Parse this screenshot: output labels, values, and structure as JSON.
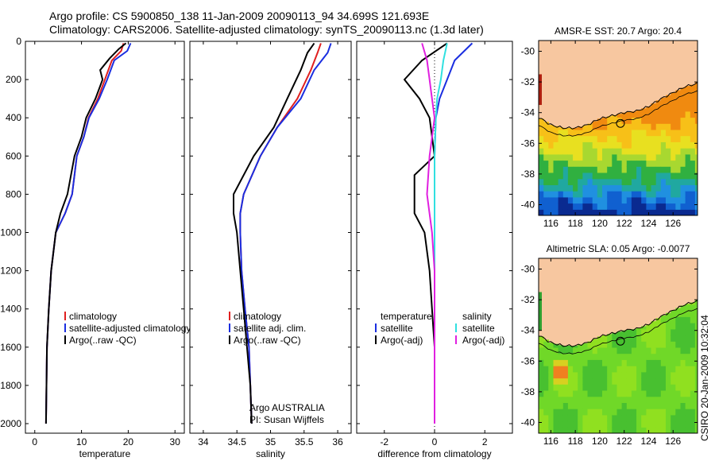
{
  "header": {
    "line1": "Argo profile: CS 5900850_138 11-Jan-2009 20090113_94 34.699S 121.693E",
    "line2": "Climatology: CARS2006. Satellite-adjusted climatology: synTS_20090113.nc (1.3d later)"
  },
  "side_label": "CSIRO 20-Jan-2009 10:32:04",
  "colors": {
    "climatology": "#e02020",
    "satellite": "#1a2ee0",
    "argo": "#000000",
    "argo_salinity_diff": "#e020e0",
    "satellite_salinity_diff": "#30e0e0",
    "land": "#f7c7a0"
  },
  "chart_data": [
    {
      "type": "line",
      "name": "temperature-profile",
      "xlabel": "temperature",
      "ylabel": "",
      "xlim": [
        -2,
        32
      ],
      "ylim": [
        2050,
        0
      ],
      "xticks": [
        0,
        10,
        20,
        30
      ],
      "yticks": [
        0,
        200,
        400,
        600,
        800,
        1000,
        1200,
        1400,
        1600,
        1800,
        2000
      ],
      "legend": [
        "climatology",
        "satellite-adjusted climatology",
        "Argo(..raw -QC)"
      ],
      "series": [
        {
          "name": "climatology",
          "color": "#e02020",
          "points": [
            [
              19.0,
              10
            ],
            [
              18.5,
              50
            ],
            [
              16.5,
              100
            ],
            [
              15.0,
              200
            ],
            [
              13.5,
              300
            ],
            [
              11.5,
              400
            ],
            [
              10.5,
              500
            ],
            [
              9.0,
              600
            ],
            [
              8.0,
              800
            ],
            [
              6.5,
              900
            ],
            [
              4.5,
              1000
            ],
            [
              3.5,
              1200
            ],
            [
              3.0,
              1400
            ],
            [
              2.6,
              1600
            ],
            [
              2.5,
              1800
            ],
            [
              2.4,
              2000
            ]
          ]
        },
        {
          "name": "satellite-adjusted climatology",
          "color": "#1a2ee0",
          "points": [
            [
              20.5,
              10
            ],
            [
              19.8,
              50
            ],
            [
              17.0,
              100
            ],
            [
              15.5,
              200
            ],
            [
              13.8,
              300
            ],
            [
              11.6,
              400
            ],
            [
              10.5,
              500
            ],
            [
              9.0,
              600
            ],
            [
              8.0,
              800
            ],
            [
              6.5,
              900
            ],
            [
              4.5,
              1000
            ],
            [
              3.5,
              1200
            ],
            [
              3.0,
              1400
            ],
            [
              2.6,
              1600
            ],
            [
              2.5,
              1800
            ],
            [
              2.4,
              2000
            ]
          ]
        },
        {
          "name": "Argo(..raw -QC)",
          "color": "#000000",
          "points": [
            [
              19.5,
              10
            ],
            [
              18.0,
              40
            ],
            [
              16.0,
              90
            ],
            [
              14.0,
              150
            ],
            [
              14.5,
              200
            ],
            [
              13.0,
              300
            ],
            [
              11.0,
              400
            ],
            [
              10.0,
              500
            ],
            [
              8.5,
              600
            ],
            [
              7.0,
              800
            ],
            [
              5.5,
              900
            ],
            [
              4.5,
              1000
            ],
            [
              3.5,
              1200
            ],
            [
              3.0,
              1400
            ],
            [
              2.6,
              1600
            ],
            [
              2.5,
              1800
            ],
            [
              2.4,
              2000
            ]
          ]
        }
      ]
    },
    {
      "type": "line",
      "name": "salinity-profile",
      "xlabel": "salinity",
      "ylabel": "",
      "xlim": [
        33.8,
        36.2
      ],
      "ylim": [
        2050,
        0
      ],
      "xticks": [
        34,
        34.5,
        35,
        35.5,
        36
      ],
      "legend": [
        "climatology",
        "satellite adj. clim.",
        "Argo(..raw -QC)"
      ],
      "note1": "Argo AUSTRALIA",
      "note2": "PI: Susan Wijffels",
      "series": [
        {
          "name": "climatology",
          "color": "#e02020",
          "points": [
            [
              35.75,
              10
            ],
            [
              35.7,
              60
            ],
            [
              35.6,
              150
            ],
            [
              35.4,
              300
            ],
            [
              35.1,
              450
            ],
            [
              34.85,
              600
            ],
            [
              34.6,
              800
            ],
            [
              34.55,
              900
            ],
            [
              34.55,
              1000
            ],
            [
              34.57,
              1200
            ],
            [
              34.62,
              1400
            ],
            [
              34.68,
              1600
            ],
            [
              34.7,
              1800
            ],
            [
              34.72,
              2000
            ]
          ]
        },
        {
          "name": "satellite adj. clim.",
          "color": "#1a2ee0",
          "points": [
            [
              35.9,
              10
            ],
            [
              35.85,
              60
            ],
            [
              35.65,
              150
            ],
            [
              35.45,
              300
            ],
            [
              35.1,
              450
            ],
            [
              34.85,
              600
            ],
            [
              34.6,
              800
            ],
            [
              34.55,
              900
            ],
            [
              34.55,
              1000
            ],
            [
              34.57,
              1200
            ],
            [
              34.62,
              1400
            ],
            [
              34.68,
              1600
            ],
            [
              34.7,
              1800
            ],
            [
              34.72,
              2000
            ]
          ]
        },
        {
          "name": "Argo(..raw -QC)",
          "color": "#000000",
          "points": [
            [
              35.65,
              10
            ],
            [
              35.55,
              60
            ],
            [
              35.45,
              150
            ],
            [
              35.25,
              300
            ],
            [
              35.05,
              450
            ],
            [
              34.75,
              600
            ],
            [
              34.45,
              800
            ],
            [
              34.45,
              900
            ],
            [
              34.5,
              1000
            ],
            [
              34.55,
              1200
            ],
            [
              34.6,
              1400
            ],
            [
              34.65,
              1600
            ],
            [
              34.7,
              1800
            ],
            [
              34.72,
              2000
            ]
          ]
        }
      ]
    },
    {
      "type": "line",
      "name": "difference-from-climatology",
      "xlabel": "difference from climatology",
      "ylabel": "",
      "xlim": [
        -3.1,
        3.1
      ],
      "ylim": [
        2050,
        0
      ],
      "xticks": [
        -2,
        0,
        2
      ],
      "legend_temperature": [
        "temperature",
        "satellite",
        "Argo(-adj)"
      ],
      "legend_salinity": [
        "salinity",
        "satellite",
        "Argo(-adj)"
      ],
      "series": [
        {
          "name": "temperature satellite",
          "color": "#1a2ee0",
          "points": [
            [
              1.5,
              10
            ],
            [
              0.8,
              100
            ],
            [
              0.5,
              200
            ],
            [
              0.2,
              300
            ],
            [
              0.05,
              400
            ],
            [
              0,
              600
            ],
            [
              0,
              2000
            ]
          ]
        },
        {
          "name": "temperature Argo(-adj)",
          "color": "#000000",
          "points": [
            [
              0.5,
              10
            ],
            [
              -0.5,
              100
            ],
            [
              -1.2,
              200
            ],
            [
              -0.6,
              300
            ],
            [
              -0.2,
              400
            ],
            [
              0,
              600
            ],
            [
              -0.8,
              700
            ],
            [
              -0.8,
              900
            ],
            [
              -0.4,
              1000
            ],
            [
              -0.2,
              1200
            ],
            [
              -0.1,
              1400
            ],
            [
              0,
              1600
            ],
            [
              0,
              2000
            ]
          ]
        },
        {
          "name": "salinity satellite",
          "color": "#30e0e0",
          "points": [
            [
              0.5,
              10
            ],
            [
              0.35,
              100
            ],
            [
              0.25,
              200
            ],
            [
              0.1,
              300
            ],
            [
              0.05,
              400
            ],
            [
              0,
              600
            ],
            [
              0,
              2000
            ]
          ]
        },
        {
          "name": "salinity Argo(-adj)",
          "color": "#e020e0",
          "points": [
            [
              -0.5,
              10
            ],
            [
              -0.3,
              100
            ],
            [
              -0.2,
              200
            ],
            [
              -0.1,
              300
            ],
            [
              0,
              400
            ],
            [
              -0.2,
              600
            ],
            [
              -0.3,
              800
            ],
            [
              -0.1,
              1000
            ],
            [
              0,
              1200
            ],
            [
              0,
              2000
            ]
          ]
        }
      ]
    },
    {
      "type": "heatmap",
      "name": "amsr-sst-map",
      "title": "AMSR-E SST: 20.7 Argo: 20.4",
      "xlim": [
        115,
        128
      ],
      "ylim": [
        -40.7,
        -29.3
      ],
      "xticks": [
        116,
        118,
        120,
        122,
        124,
        126
      ],
      "yticks": [
        -30,
        -32,
        -34,
        -36,
        -38,
        -40
      ],
      "argo_position": [
        121.693,
        -34.699
      ]
    },
    {
      "type": "heatmap",
      "name": "altimetric-sla-map",
      "title": "Altimetric SLA: 0.05 Argo: -0.0077",
      "xlim": [
        115,
        128
      ],
      "ylim": [
        -40.7,
        -29.3
      ],
      "xticks": [
        116,
        118,
        120,
        122,
        124,
        126
      ],
      "yticks": [
        -30,
        -32,
        -34,
        -36,
        -38,
        -40
      ],
      "argo_position": [
        121.693,
        -34.699
      ]
    }
  ]
}
